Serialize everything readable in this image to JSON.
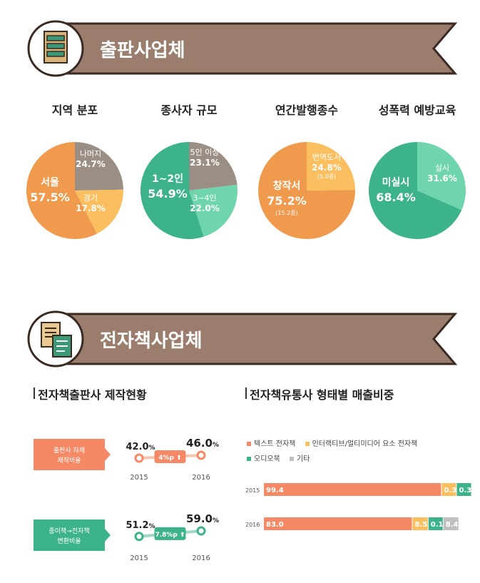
{
  "colors": {
    "banner": "#9a7d6d",
    "banner_border": "#3a2a22",
    "orange": "#ef9a4c",
    "gray": "#9b8f85",
    "yellow": "#fbbf5f",
    "teal": "#3cb38a",
    "mint": "#6fd5ad",
    "coral": "#f58966"
  },
  "section1": {
    "title": "출판사업체",
    "icon": "bookshelf-icon"
  },
  "section2": {
    "title": "전자책사업체",
    "icon": "ebook-documents-icon"
  },
  "chart_data": [
    {
      "type": "pie",
      "title": "지역 분포",
      "slices": [
        {
          "label": "서울",
          "value_text": "57.5%",
          "value": 57.5,
          "color": "#ef9a4c"
        },
        {
          "label": "나머지",
          "value_text": "24.7%",
          "value": 24.7,
          "color": "#9b8f85"
        },
        {
          "label": "경기",
          "value_text": "17.8%",
          "value": 17.8,
          "color": "#fbbf5f"
        }
      ]
    },
    {
      "type": "pie",
      "title": "종사자 규모",
      "slices": [
        {
          "label": "1~2인",
          "value_text": "54.9%",
          "value": 54.9,
          "color": "#3cb38a"
        },
        {
          "label": "5인 이상",
          "value_text": "23.1%",
          "value": 23.1,
          "color": "#9b8f85"
        },
        {
          "label": "3~4인",
          "value_text": "22.0%",
          "value": 22.0,
          "color": "#6fd5ad"
        }
      ]
    },
    {
      "type": "pie",
      "title": "연간발행종수",
      "slices": [
        {
          "label": "창작서",
          "value_text": "75.2%",
          "sub": "(15.2종)",
          "value": 75.2,
          "color": "#ef9a4c"
        },
        {
          "label": "번역도서",
          "value_text": "24.8%",
          "sub": "(5.0종)",
          "value": 24.8,
          "color": "#fbbf5f"
        }
      ]
    },
    {
      "type": "pie",
      "title": "성폭력 예방교육",
      "slices": [
        {
          "label": "미실시",
          "value_text": "68.4%",
          "value": 68.4,
          "color": "#3cb38a"
        },
        {
          "label": "실시",
          "value_text": "31.6%",
          "value": 31.6,
          "color": "#6fd5ad"
        }
      ]
    },
    {
      "type": "line",
      "title": "전자책출판사 제작현황",
      "rows": [
        {
          "label_lines": [
            "출판사 자체",
            "제작비율"
          ],
          "color": "#f58966",
          "x": [
            "2015",
            "2016"
          ],
          "y": [
            42.0,
            46.0
          ],
          "value_texts": [
            "42.0",
            "46.0"
          ],
          "unit": "%",
          "change": "4%p ⬆"
        },
        {
          "label_lines": [
            "종이책→전자책",
            "변환비율"
          ],
          "color": "#3cb38a",
          "x": [
            "2015",
            "2016"
          ],
          "y": [
            51.2,
            59.0
          ],
          "value_texts": [
            "51.2",
            "59.0"
          ],
          "unit": "%",
          "change": "7.8%p ⬆"
        }
      ]
    },
    {
      "type": "bar",
      "orientation": "horizontal-stacked",
      "title": "전자책유통사 형태별 매출비중",
      "legend": [
        {
          "name": "텍스트 전자책",
          "color": "#f58966"
        },
        {
          "name": "인터랙티브/멀티미디어 요소 전자책",
          "color": "#fbbf5f"
        },
        {
          "name": "오디오북",
          "color": "#3cb38a"
        },
        {
          "name": "기타",
          "color": "#bfbfbf"
        }
      ],
      "categories": [
        "2015",
        "2016"
      ],
      "series": [
        {
          "name": "텍스트 전자책",
          "values": [
            99.4,
            83.0
          ],
          "labels": [
            "99.4",
            "83.0"
          ]
        },
        {
          "name": "인터랙티브/멀티미디어 요소 전자책",
          "values": [
            0.3,
            8.5
          ],
          "labels": [
            "0.3",
            "8.5"
          ]
        },
        {
          "name": "오디오북",
          "values": [
            0.3,
            0.1
          ],
          "labels": [
            "0.3",
            "0.1"
          ]
        },
        {
          "name": "기타",
          "values": [
            0.0,
            8.4
          ],
          "labels": [
            "",
            "8.4"
          ]
        }
      ]
    }
  ]
}
